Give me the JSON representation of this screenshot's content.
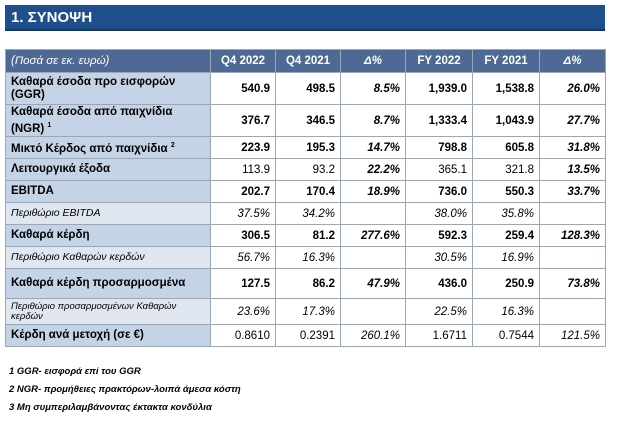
{
  "section": {
    "title": "1.  ΣΥΝΟΨΗ"
  },
  "table": {
    "headers": [
      "(Ποσά σε εκ. ευρώ)",
      "Q4 2022",
      "Q4 2021",
      "Δ%",
      "FY 2022",
      "FY 2021",
      "Δ%"
    ],
    "rows": [
      {
        "label": "Καθαρά έσοδα προ εισφορών (GGR)",
        "sup": "",
        "values": [
          "540.9",
          "498.5",
          "8.5%",
          "1,939.0",
          "1,538.8",
          "26.0%"
        ]
      },
      {
        "label": "Καθαρά έσοδα από παιχνίδια (NGR)",
        "sup": "1",
        "values": [
          "376.7",
          "346.5",
          "8.7%",
          "1,333.4",
          "1,043.9",
          "27.7%"
        ]
      },
      {
        "label": "Μικτό Κέρδος από παιχνίδια",
        "sup": "2",
        "values": [
          "223.9",
          "195.3",
          "14.7%",
          "798.8",
          "605.8",
          "31.8%"
        ]
      },
      {
        "label": "Λειτουργικά έξοδα",
        "sup": "",
        "values": [
          "113.9",
          "93.2",
          "22.2%",
          "365.1",
          "321.8",
          "13.5%"
        ]
      },
      {
        "label": "EBITDA",
        "sup": "",
        "values": [
          "202.7",
          "170.4",
          "18.9%",
          "736.0",
          "550.3",
          "33.7%"
        ]
      },
      {
        "label": "Περιθώριο EBITDA",
        "sup": "",
        "values": [
          "37.5%",
          "34.2%",
          "",
          "38.0%",
          "35.8%",
          ""
        ]
      },
      {
        "label": "Καθαρά κέρδη",
        "sup": "",
        "values": [
          "306.5",
          "81.2",
          "277.6%",
          "592.3",
          "259.4",
          "128.3%"
        ]
      },
      {
        "label": "Περιθώριο Καθαρών κερδών",
        "sup": "",
        "values": [
          "56.7%",
          "16.3%",
          "",
          "30.5%",
          "16.9%",
          ""
        ]
      },
      {
        "label": "Καθαρά κέρδη προσαρμοσμένα",
        "sup": "",
        "values": [
          "127.5",
          "86.2",
          "47.9%",
          "436.0",
          "250.9",
          "73.8%"
        ]
      },
      {
        "label": "Περιθώριο προσαρμοσμένων Καθαρών κερδών",
        "sup": "",
        "values": [
          "23.6%",
          "17.3%",
          "",
          "22.5%",
          "16.3%",
          ""
        ]
      },
      {
        "label": "Κέρδη ανά μετοχή (σε €)",
        "sup": "",
        "values": [
          "0.8610",
          "0.2391",
          "260.1%",
          "1.6711",
          "0.7544",
          "121.5%"
        ]
      }
    ]
  },
  "notes": [
    "1 GGR- εισφορά επί του GGR",
    "2 NGR- προμήθειες πρακτόρων-λοιπά άμεσα κόστη",
    "3 Μη συμπεριλαμβάνοντας έκτακτα κονδύλια"
  ]
}
